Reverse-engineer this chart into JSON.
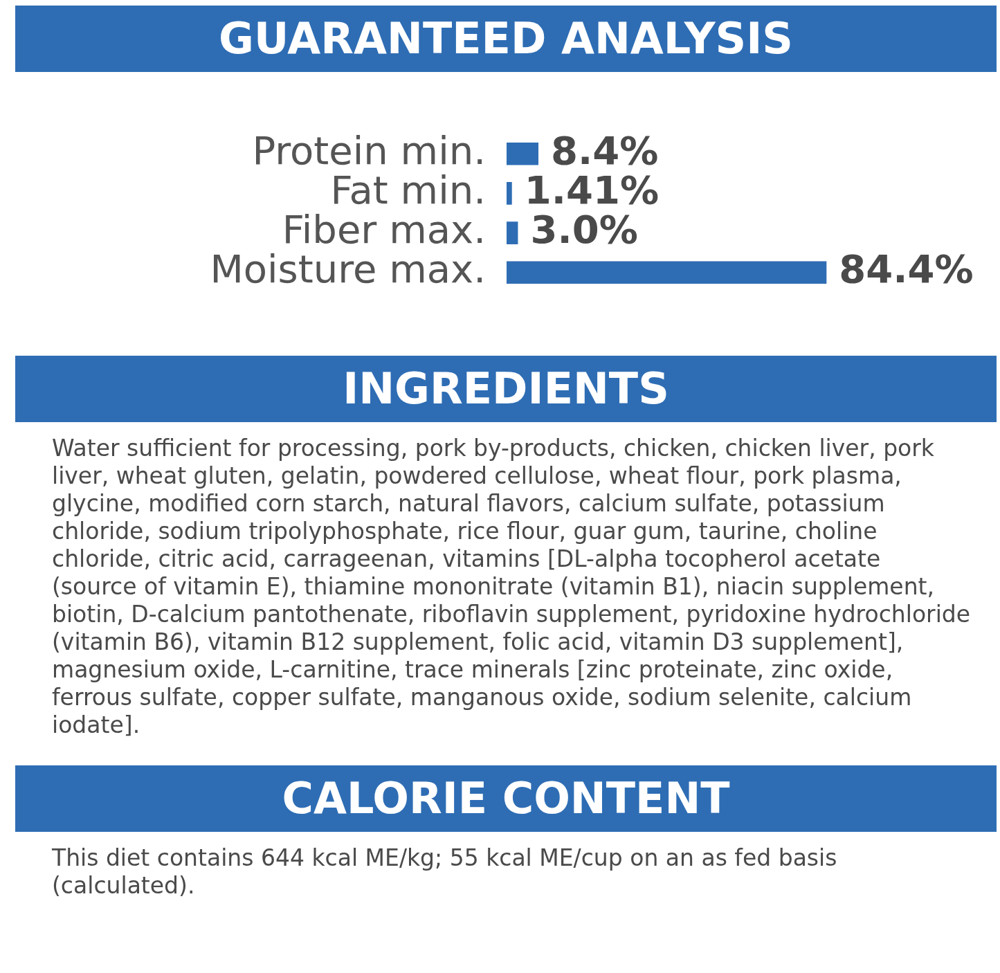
{
  "chart_data": {
    "type": "bar",
    "orientation": "horizontal",
    "title": "GUARANTEED ANALYSIS",
    "categories": [
      "Protein min.",
      "Fat min.",
      "Fiber max.",
      "Moisture max."
    ],
    "values": [
      8.4,
      1.41,
      3.0,
      84.4
    ],
    "value_labels": [
      "8.4%",
      "1.41%",
      "3.0%",
      "84.4%"
    ],
    "color": "#2e6db4",
    "tick_labels": "y",
    "grid": false,
    "legend": false,
    "annotations": [
      "INGREDIENTS",
      "Water sufficient for processing, pork by-products, chicken, chicken liver, pork liver, wheat gluten, gelatin, powdered cellulose, wheat flour, pork plasma, glycine, modified corn starch, natural flavors, calcium sulfate, potassium chloride, sodium tripolyphosphate, rice flour, guar gum, taurine, choline chloride, citric acid, carrageenan, vitamins [DL-alpha tocopherol acetate (source of vitamin E), thiamine mononitrate (vitamin B1), niacin supplement, biotin, D-calcium pantothenate, riboflavin supplement, pyridoxine hydrochloride (vitamin B6), vitamin B12 supplement, folic acid, vitamin D3 supplement], magnesium oxide, L-carnitine, trace minerals [zinc proteinate, zinc oxide, ferrous sulfate, copper sulfate, manganous oxide, sodium selenite, calcium iodate].",
      "CALORIE CONTENT",
      "This diet contains 644 kcal ME/kg; 55 kcal ME/cup on an as fed basis (calculated)."
    ]
  }
}
